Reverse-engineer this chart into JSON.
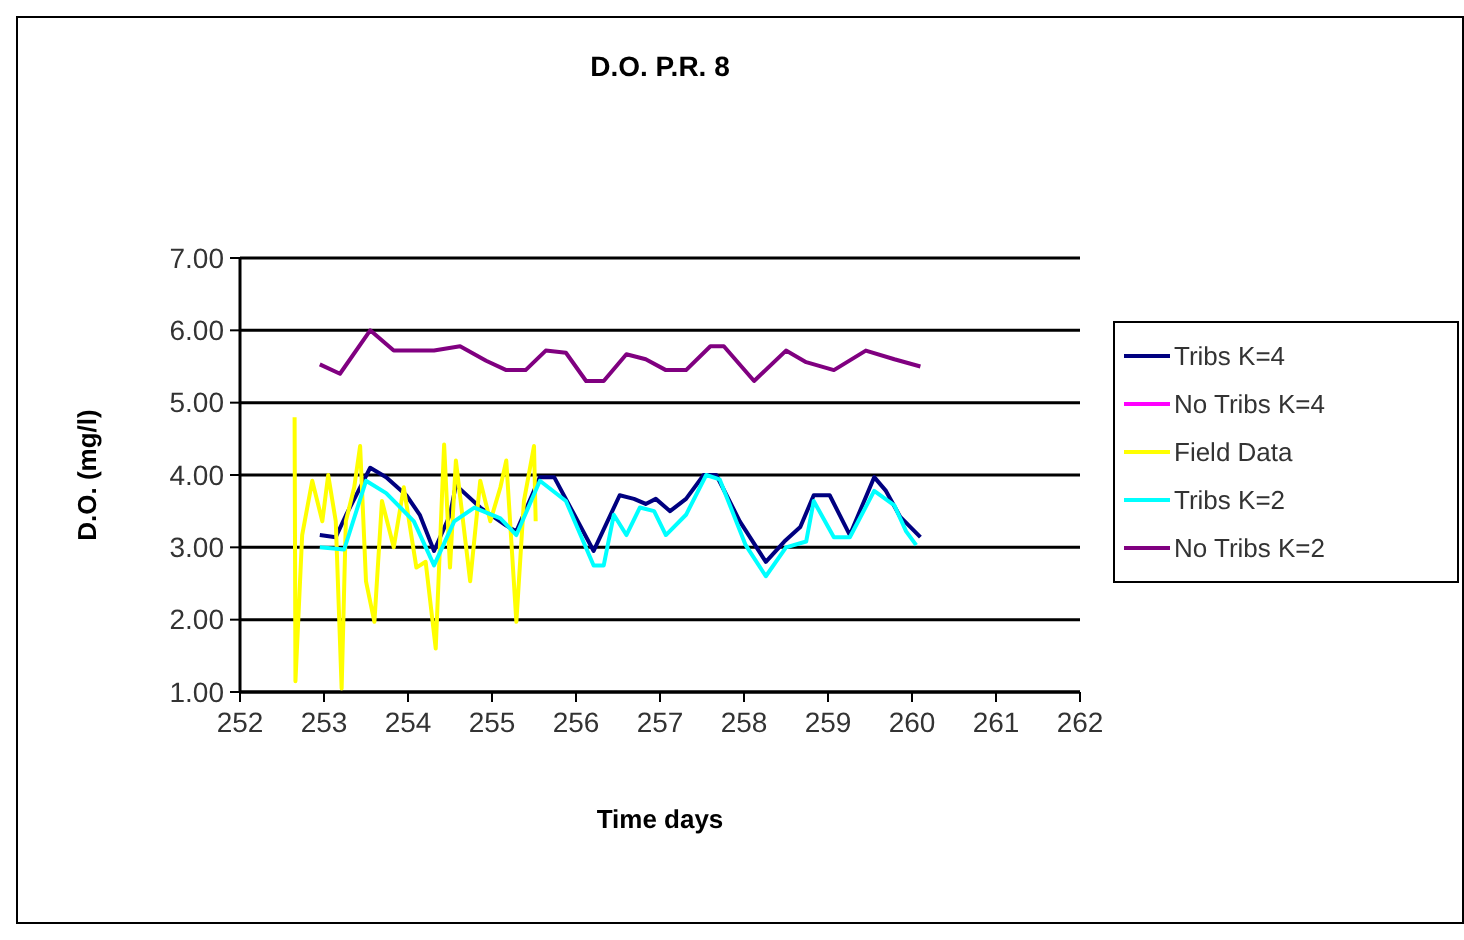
{
  "chart_data": {
    "type": "line",
    "title": "D.O. P.R. 8",
    "xlabel": "Time days",
    "ylabel": "D.O. (mg/l)",
    "xlim": [
      252,
      262
    ],
    "xticks": [
      252,
      253,
      254,
      255,
      256,
      257,
      258,
      259,
      260,
      261,
      262
    ],
    "ylim": [
      1,
      7
    ],
    "yticks": [
      {
        "value": 1,
        "label": "1.00"
      },
      {
        "value": 2,
        "label": "2.00"
      },
      {
        "value": 3,
        "label": "3.00"
      },
      {
        "value": 4,
        "label": "4.00"
      },
      {
        "value": 5,
        "label": "5.00"
      },
      {
        "value": 6,
        "label": "6.00"
      },
      {
        "value": 7,
        "label": "7.00"
      }
    ],
    "grid": "y",
    "legend": "right",
    "marker": "none",
    "line_style": "solid",
    "series": [
      {
        "name": "Tribs K=4",
        "color": "#000080",
        "x": [
          252.95,
          253.14,
          253.26,
          253.55,
          253.74,
          253.98,
          254.14,
          254.31,
          254.5,
          254.57,
          254.86,
          255.17,
          255.29,
          255.57,
          255.74,
          255.98,
          256.21,
          256.52,
          256.69,
          256.83,
          256.95,
          257.12,
          257.31,
          257.52,
          257.67,
          257.95,
          258.26,
          258.48,
          258.67,
          258.83,
          259.02,
          259.26,
          259.55,
          259.69,
          259.86,
          260.1
        ],
        "values": [
          3.17,
          3.14,
          3.44,
          4.1,
          3.97,
          3.72,
          3.45,
          2.95,
          3.45,
          3.86,
          3.55,
          3.3,
          3.22,
          3.97,
          3.97,
          3.45,
          2.95,
          3.72,
          3.67,
          3.6,
          3.67,
          3.5,
          3.67,
          4.0,
          4.0,
          3.36,
          2.8,
          3.08,
          3.28,
          3.72,
          3.72,
          3.17,
          3.97,
          3.78,
          3.42,
          3.14
        ]
      },
      {
        "name": "No Tribs K=4",
        "color": "#ff00ff"
      },
      {
        "name": "Field Data",
        "color": "#ffff00",
        "x": [
          252.65,
          252.66,
          252.74,
          252.86,
          252.98,
          253.05,
          253.14,
          253.21,
          253.26,
          253.36,
          253.43,
          253.5,
          253.6,
          253.69,
          253.83,
          253.95,
          254.1,
          254.21,
          254.33,
          254.43,
          254.5,
          254.57,
          254.74,
          254.86,
          254.98,
          255.1,
          255.17,
          255.29,
          255.38,
          255.5,
          255.52
        ],
        "values": [
          4.8,
          1.15,
          3.17,
          3.92,
          3.36,
          4.0,
          3.36,
          1.05,
          3.36,
          3.83,
          4.4,
          2.53,
          1.97,
          3.64,
          3.0,
          3.83,
          2.72,
          2.8,
          1.6,
          4.42,
          2.72,
          4.2,
          2.53,
          3.92,
          3.36,
          3.83,
          4.2,
          1.97,
          3.64,
          4.4,
          3.36
        ]
      },
      {
        "name": "Tribs K=2",
        "color": "#00ffff",
        "x": [
          252.95,
          253.24,
          253.5,
          253.74,
          254.07,
          254.31,
          254.55,
          254.79,
          255.1,
          255.29,
          255.57,
          255.88,
          256.21,
          256.33,
          256.45,
          256.6,
          256.76,
          256.93,
          257.07,
          257.31,
          257.55,
          257.71,
          258.02,
          258.26,
          258.5,
          258.74,
          258.83,
          259.07,
          259.26,
          259.55,
          259.79,
          259.93,
          260.05
        ],
        "values": [
          3.0,
          2.97,
          3.92,
          3.75,
          3.36,
          2.75,
          3.36,
          3.55,
          3.4,
          3.17,
          3.92,
          3.64,
          2.75,
          2.75,
          3.45,
          3.17,
          3.55,
          3.5,
          3.17,
          3.45,
          4.0,
          3.94,
          3.03,
          2.6,
          3.0,
          3.08,
          3.64,
          3.14,
          3.14,
          3.78,
          3.58,
          3.22,
          3.03
        ]
      },
      {
        "name": "No Tribs K=2",
        "color": "#800080",
        "x": [
          252.95,
          253.19,
          253.55,
          253.83,
          254.31,
          254.62,
          254.93,
          255.17,
          255.4,
          255.64,
          255.88,
          256.12,
          256.33,
          256.6,
          256.83,
          257.07,
          257.31,
          257.6,
          257.76,
          258.12,
          258.5,
          258.74,
          259.07,
          259.45,
          259.79,
          260.1
        ],
        "values": [
          5.53,
          5.4,
          6.0,
          5.72,
          5.72,
          5.78,
          5.58,
          5.45,
          5.45,
          5.72,
          5.69,
          5.3,
          5.3,
          5.67,
          5.6,
          5.45,
          5.45,
          5.78,
          5.78,
          5.3,
          5.72,
          5.56,
          5.45,
          5.72,
          5.6,
          5.5
        ]
      }
    ]
  }
}
